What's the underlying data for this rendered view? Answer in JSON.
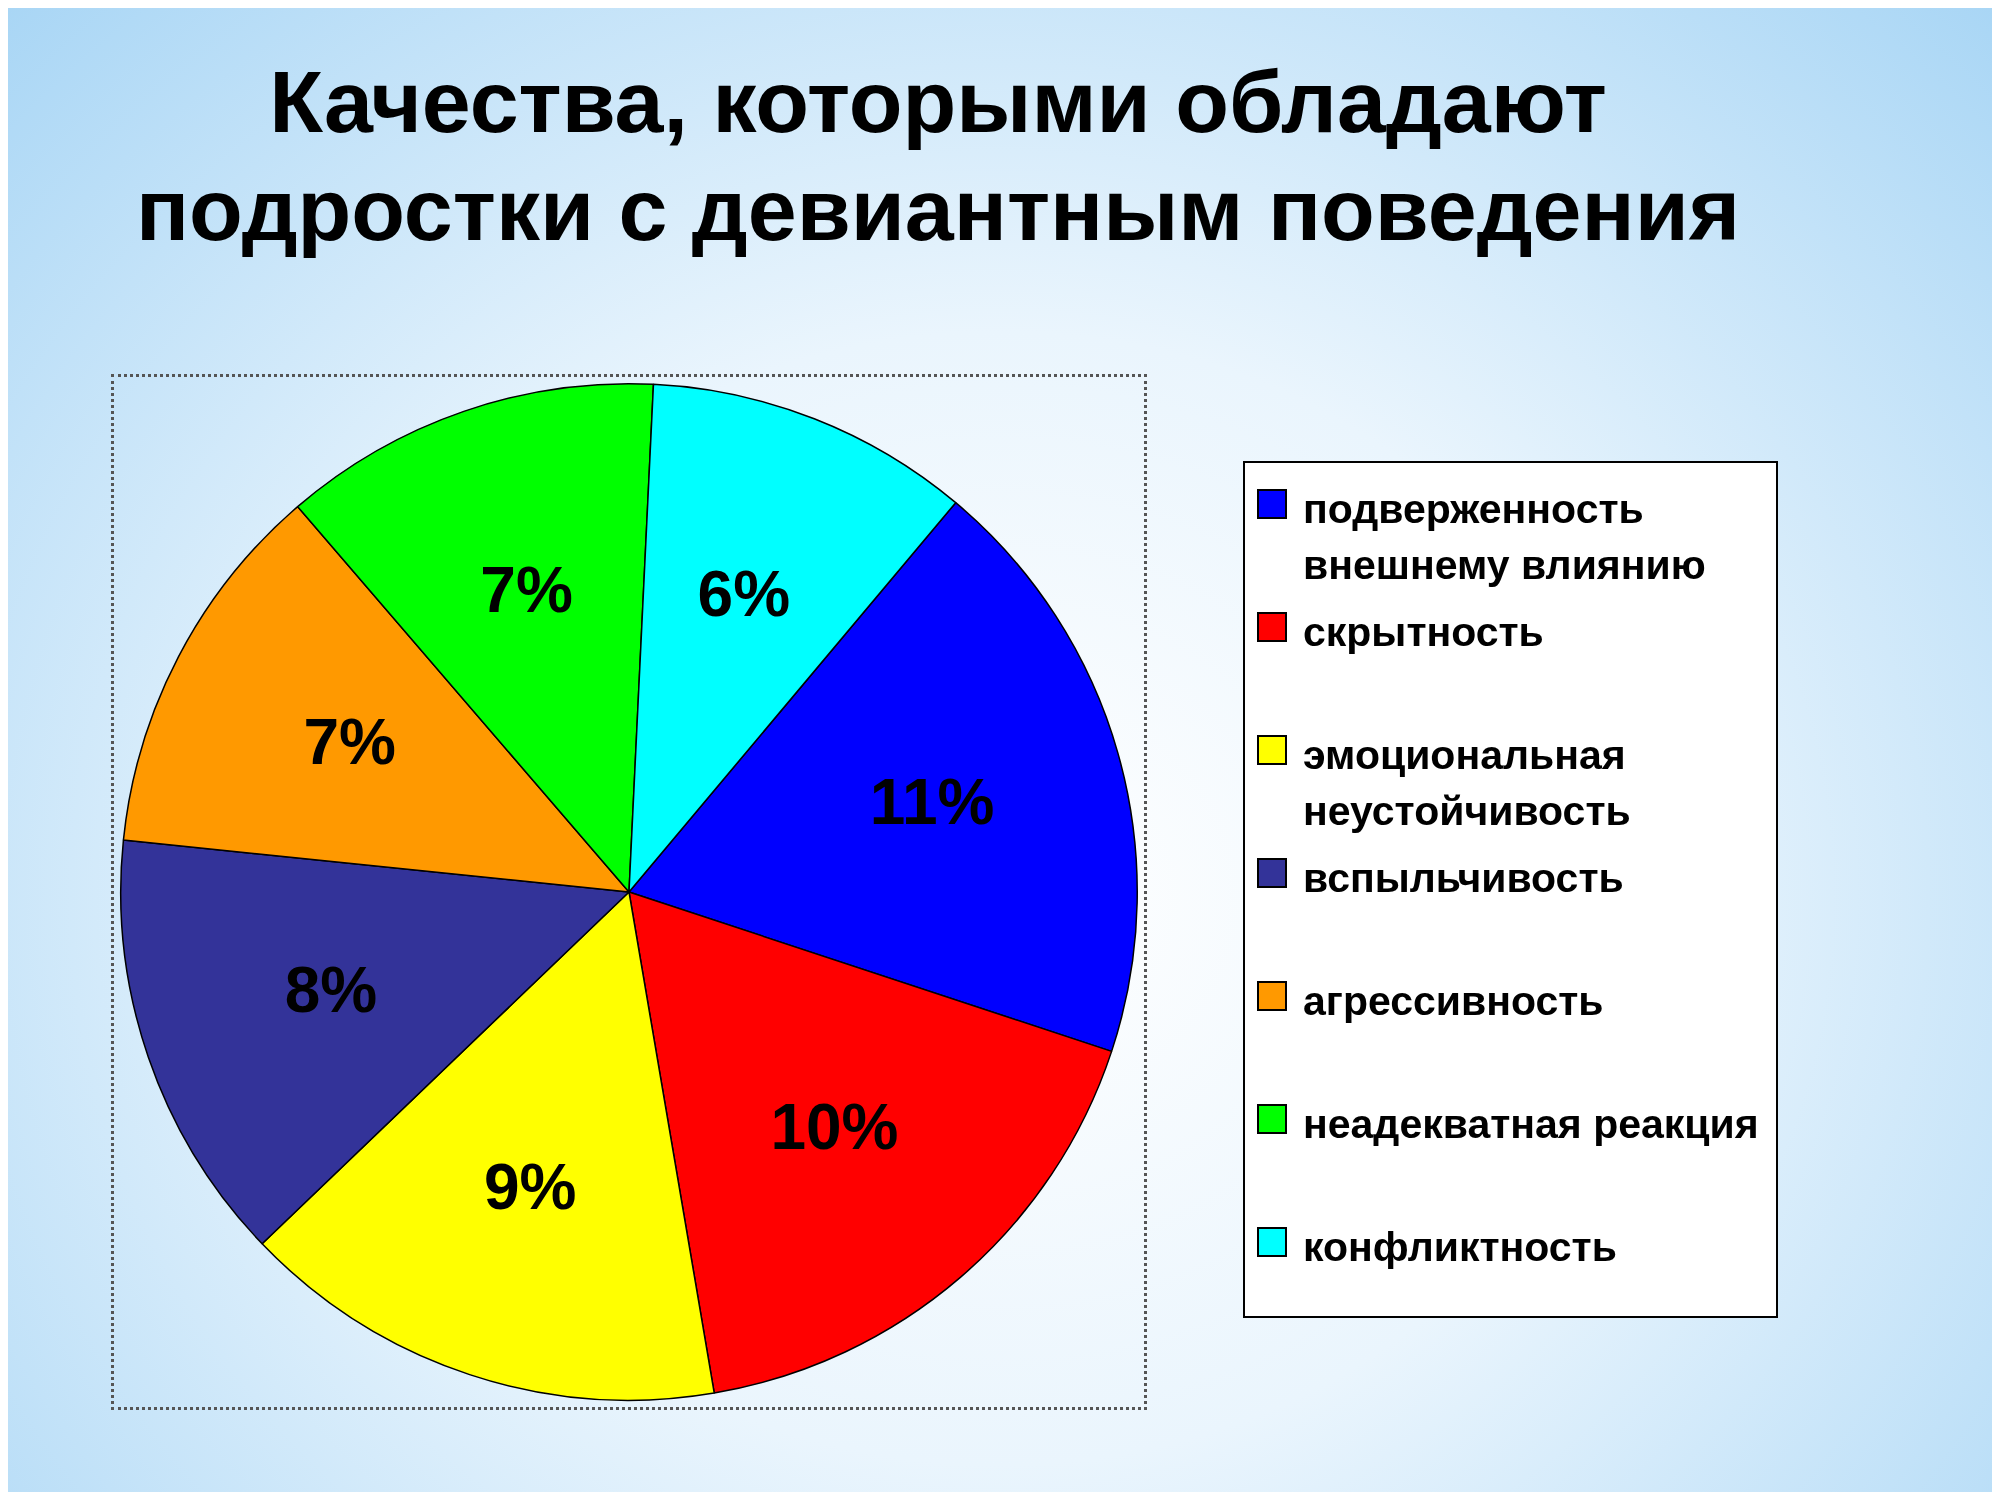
{
  "chart_data": {
    "type": "pie",
    "title": "Качества, которыми обладают подростки с девиантным поведения",
    "categories": [
      "подверженность внешнему влиянию",
      "скрытность",
      "эмоциональная неустойчивость",
      "вспыльчивость",
      "агрессивность",
      "неадекватная реакция",
      "конфликтность"
    ],
    "values": [
      11,
      10,
      9,
      8,
      7,
      7,
      6
    ],
    "colors": [
      "#0000ff",
      "#ff0000",
      "#ffff00",
      "#333399",
      "#ff9900",
      "#00ff00",
      "#00ffff"
    ],
    "value_labels": [
      "11%",
      "10%",
      "9%",
      "8%",
      "7%",
      "7%",
      "6%"
    ],
    "legend": "right"
  }
}
